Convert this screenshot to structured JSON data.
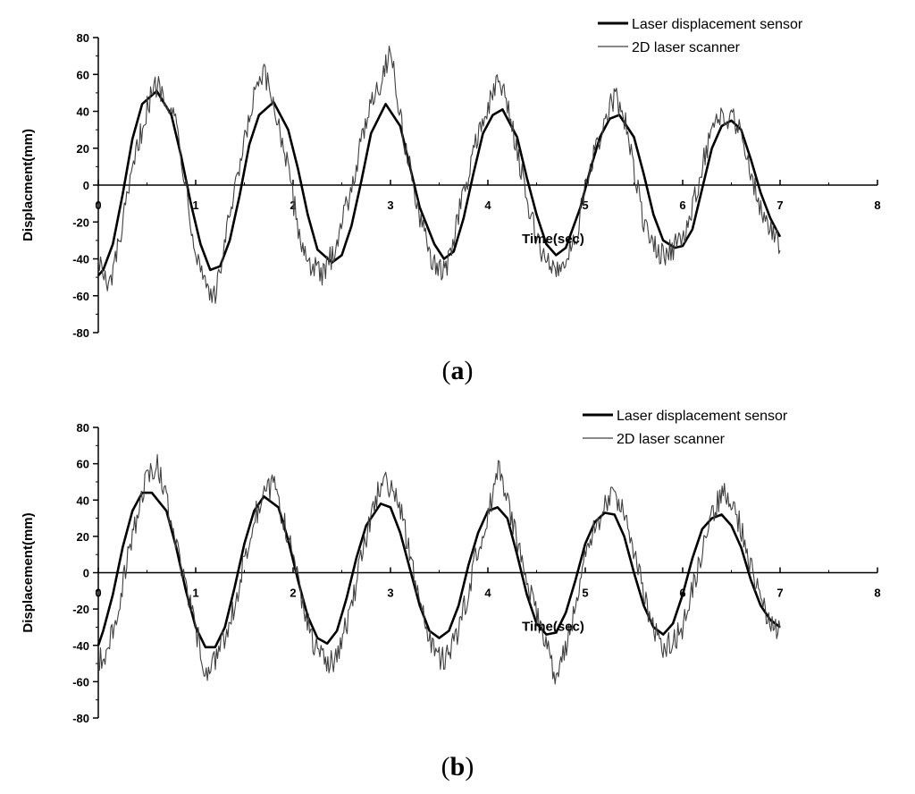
{
  "chart_data": [
    {
      "type": "line",
      "panel_label": "a",
      "xlabel": "Time(sec)",
      "ylabel": "Displacment(mm)",
      "xlim": [
        0,
        8
      ],
      "ylim": [
        -80,
        80
      ],
      "xticks": [
        "0",
        "1",
        "2",
        "3",
        "4",
        "5",
        "6",
        "7",
        "8"
      ],
      "yticks": [
        "80",
        "60",
        "40",
        "20",
        "0",
        "-20",
        "-40",
        "-60",
        "-80"
      ],
      "legend_position": "top-right",
      "grid": false,
      "noise_seed": 7,
      "series": [
        {
          "name": "Laser displacement sensor",
          "style": "thick",
          "color": "#000000",
          "x": [
            0,
            0.05,
            0.15,
            0.25,
            0.35,
            0.45,
            0.6,
            0.75,
            0.85,
            0.95,
            1.05,
            1.15,
            1.25,
            1.35,
            1.45,
            1.55,
            1.65,
            1.8,
            1.95,
            2.05,
            2.15,
            2.25,
            2.4,
            2.5,
            2.6,
            2.7,
            2.8,
            2.95,
            3.1,
            3.2,
            3.3,
            3.45,
            3.55,
            3.65,
            3.75,
            3.85,
            3.95,
            4.05,
            4.15,
            4.3,
            4.4,
            4.5,
            4.6,
            4.7,
            4.8,
            4.95,
            5.05,
            5.15,
            5.25,
            5.35,
            5.5,
            5.6,
            5.7,
            5.8,
            5.92,
            6.0,
            6.1,
            6.2,
            6.3,
            6.4,
            6.5,
            6.6,
            6.7,
            6.8,
            6.9,
            7.0
          ],
          "y": [
            -49,
            -46,
            -32,
            -5,
            25,
            44,
            51,
            38,
            16,
            -10,
            -32,
            -46,
            -44,
            -30,
            -6,
            22,
            38,
            45,
            30,
            9,
            -16,
            -35,
            -42,
            -38,
            -22,
            2,
            28,
            44,
            32,
            10,
            -12,
            -32,
            -40,
            -36,
            -18,
            6,
            28,
            38,
            41,
            26,
            4,
            -16,
            -32,
            -38,
            -34,
            -12,
            8,
            26,
            36,
            38,
            26,
            6,
            -16,
            -30,
            -34,
            -33,
            -24,
            -2,
            20,
            32,
            35,
            30,
            14,
            -4,
            -18,
            -28
          ]
        },
        {
          "name": "2D laser scanner",
          "style": "thin-noisy",
          "color": "#404040",
          "x": [
            0,
            0.1,
            0.2,
            0.3,
            0.4,
            0.5,
            0.6,
            0.7,
            0.8,
            0.9,
            1.0,
            1.1,
            1.2,
            1.3,
            1.4,
            1.5,
            1.6,
            1.7,
            1.8,
            1.9,
            2.0,
            2.1,
            2.2,
            2.3,
            2.4,
            2.5,
            2.6,
            2.7,
            2.8,
            2.9,
            3.0,
            3.1,
            3.2,
            3.3,
            3.4,
            3.5,
            3.6,
            3.7,
            3.8,
            3.9,
            4.0,
            4.1,
            4.2,
            4.3,
            4.4,
            4.5,
            4.6,
            4.7,
            4.8,
            4.9,
            5.0,
            5.1,
            5.2,
            5.3,
            5.4,
            5.5,
            5.6,
            5.7,
            5.8,
            5.9,
            6.0,
            6.1,
            6.2,
            6.3,
            6.4,
            6.5,
            6.6,
            6.7,
            6.8,
            6.9,
            7.0
          ],
          "y": [
            -38,
            -58,
            -35,
            -8,
            20,
            42,
            55,
            48,
            34,
            0,
            -36,
            -52,
            -62,
            -30,
            -5,
            22,
            48,
            60,
            44,
            22,
            -8,
            -35,
            -44,
            -50,
            -38,
            -20,
            0,
            22,
            48,
            55,
            75,
            36,
            10,
            -20,
            -36,
            -48,
            -42,
            -14,
            4,
            30,
            40,
            58,
            44,
            20,
            -10,
            -28,
            -42,
            -46,
            -40,
            -28,
            -4,
            18,
            34,
            48,
            36,
            10,
            -22,
            -32,
            -38,
            -34,
            -30,
            -14,
            12,
            28,
            36,
            38,
            30,
            8,
            -12,
            -24,
            -32
          ]
        }
      ]
    },
    {
      "type": "line",
      "panel_label": "b",
      "xlabel": "Time(sec)",
      "ylabel": "Displacement(mm)",
      "xlim": [
        0,
        8
      ],
      "ylim": [
        -80,
        80
      ],
      "xticks": [
        "0",
        "1",
        "2",
        "3",
        "4",
        "5",
        "6",
        "7",
        "8"
      ],
      "yticks": [
        "80",
        "60",
        "40",
        "20",
        "0",
        "-20",
        "-40",
        "-60",
        "-80"
      ],
      "legend_position": "top-right",
      "grid": false,
      "noise_seed": 19,
      "series": [
        {
          "name": "Laser displacement sensor",
          "style": "thick",
          "color": "#000000",
          "x": [
            0,
            0.05,
            0.15,
            0.25,
            0.35,
            0.45,
            0.55,
            0.7,
            0.8,
            0.9,
            1.0,
            1.1,
            1.2,
            1.3,
            1.4,
            1.5,
            1.6,
            1.7,
            1.85,
            1.95,
            2.05,
            2.15,
            2.25,
            2.35,
            2.45,
            2.55,
            2.65,
            2.75,
            2.9,
            3.0,
            3.1,
            3.2,
            3.3,
            3.4,
            3.5,
            3.6,
            3.7,
            3.8,
            3.9,
            4.0,
            4.1,
            4.2,
            4.3,
            4.4,
            4.5,
            4.6,
            4.7,
            4.8,
            4.9,
            5.0,
            5.1,
            5.2,
            5.3,
            5.4,
            5.5,
            5.6,
            5.7,
            5.8,
            5.9,
            6.0,
            6.1,
            6.2,
            6.3,
            6.4,
            6.5,
            6.6,
            6.7,
            6.8,
            6.9,
            7.0
          ],
          "y": [
            -40,
            -32,
            -12,
            14,
            34,
            44,
            44,
            34,
            14,
            -10,
            -30,
            -41,
            -41,
            -30,
            -8,
            16,
            34,
            42,
            36,
            18,
            -4,
            -24,
            -36,
            -39,
            -32,
            -14,
            8,
            26,
            38,
            36,
            22,
            2,
            -18,
            -32,
            -36,
            -32,
            -18,
            4,
            22,
            34,
            36,
            30,
            10,
            -12,
            -28,
            -34,
            -33,
            -22,
            -4,
            16,
            28,
            33,
            32,
            20,
            0,
            -18,
            -30,
            -34,
            -28,
            -12,
            8,
            24,
            30,
            32,
            26,
            14,
            -4,
            -18,
            -26,
            -30
          ]
        },
        {
          "name": "2D laser scanner",
          "style": "thin-noisy",
          "color": "#404040",
          "x": [
            0,
            0.1,
            0.2,
            0.3,
            0.4,
            0.5,
            0.6,
            0.7,
            0.8,
            0.9,
            1.0,
            1.1,
            1.2,
            1.3,
            1.4,
            1.5,
            1.6,
            1.7,
            1.8,
            1.9,
            2.0,
            2.1,
            2.2,
            2.3,
            2.4,
            2.5,
            2.6,
            2.7,
            2.8,
            2.9,
            3.0,
            3.1,
            3.2,
            3.3,
            3.4,
            3.5,
            3.6,
            3.7,
            3.8,
            3.9,
            4.0,
            4.1,
            4.2,
            4.3,
            4.4,
            4.5,
            4.6,
            4.7,
            4.8,
            4.9,
            5.0,
            5.1,
            5.2,
            5.3,
            5.4,
            5.5,
            5.6,
            5.7,
            5.8,
            5.9,
            6.0,
            6.1,
            6.2,
            6.3,
            6.4,
            6.5,
            6.6,
            6.7,
            6.8,
            6.9,
            7.0
          ],
          "y": [
            -50,
            -42,
            -20,
            8,
            30,
            55,
            60,
            40,
            18,
            -10,
            -30,
            -55,
            -48,
            -35,
            -18,
            8,
            30,
            42,
            48,
            30,
            8,
            -18,
            -38,
            -46,
            -50,
            -38,
            -18,
            8,
            30,
            50,
            48,
            35,
            10,
            -18,
            -35,
            -48,
            -46,
            -32,
            -10,
            14,
            30,
            58,
            40,
            18,
            -5,
            -22,
            -40,
            -60,
            -42,
            -18,
            8,
            24,
            36,
            44,
            32,
            12,
            -12,
            -30,
            -40,
            -38,
            -30,
            -10,
            12,
            30,
            44,
            40,
            24,
            4,
            -14,
            -28,
            -34
          ]
        }
      ]
    }
  ]
}
